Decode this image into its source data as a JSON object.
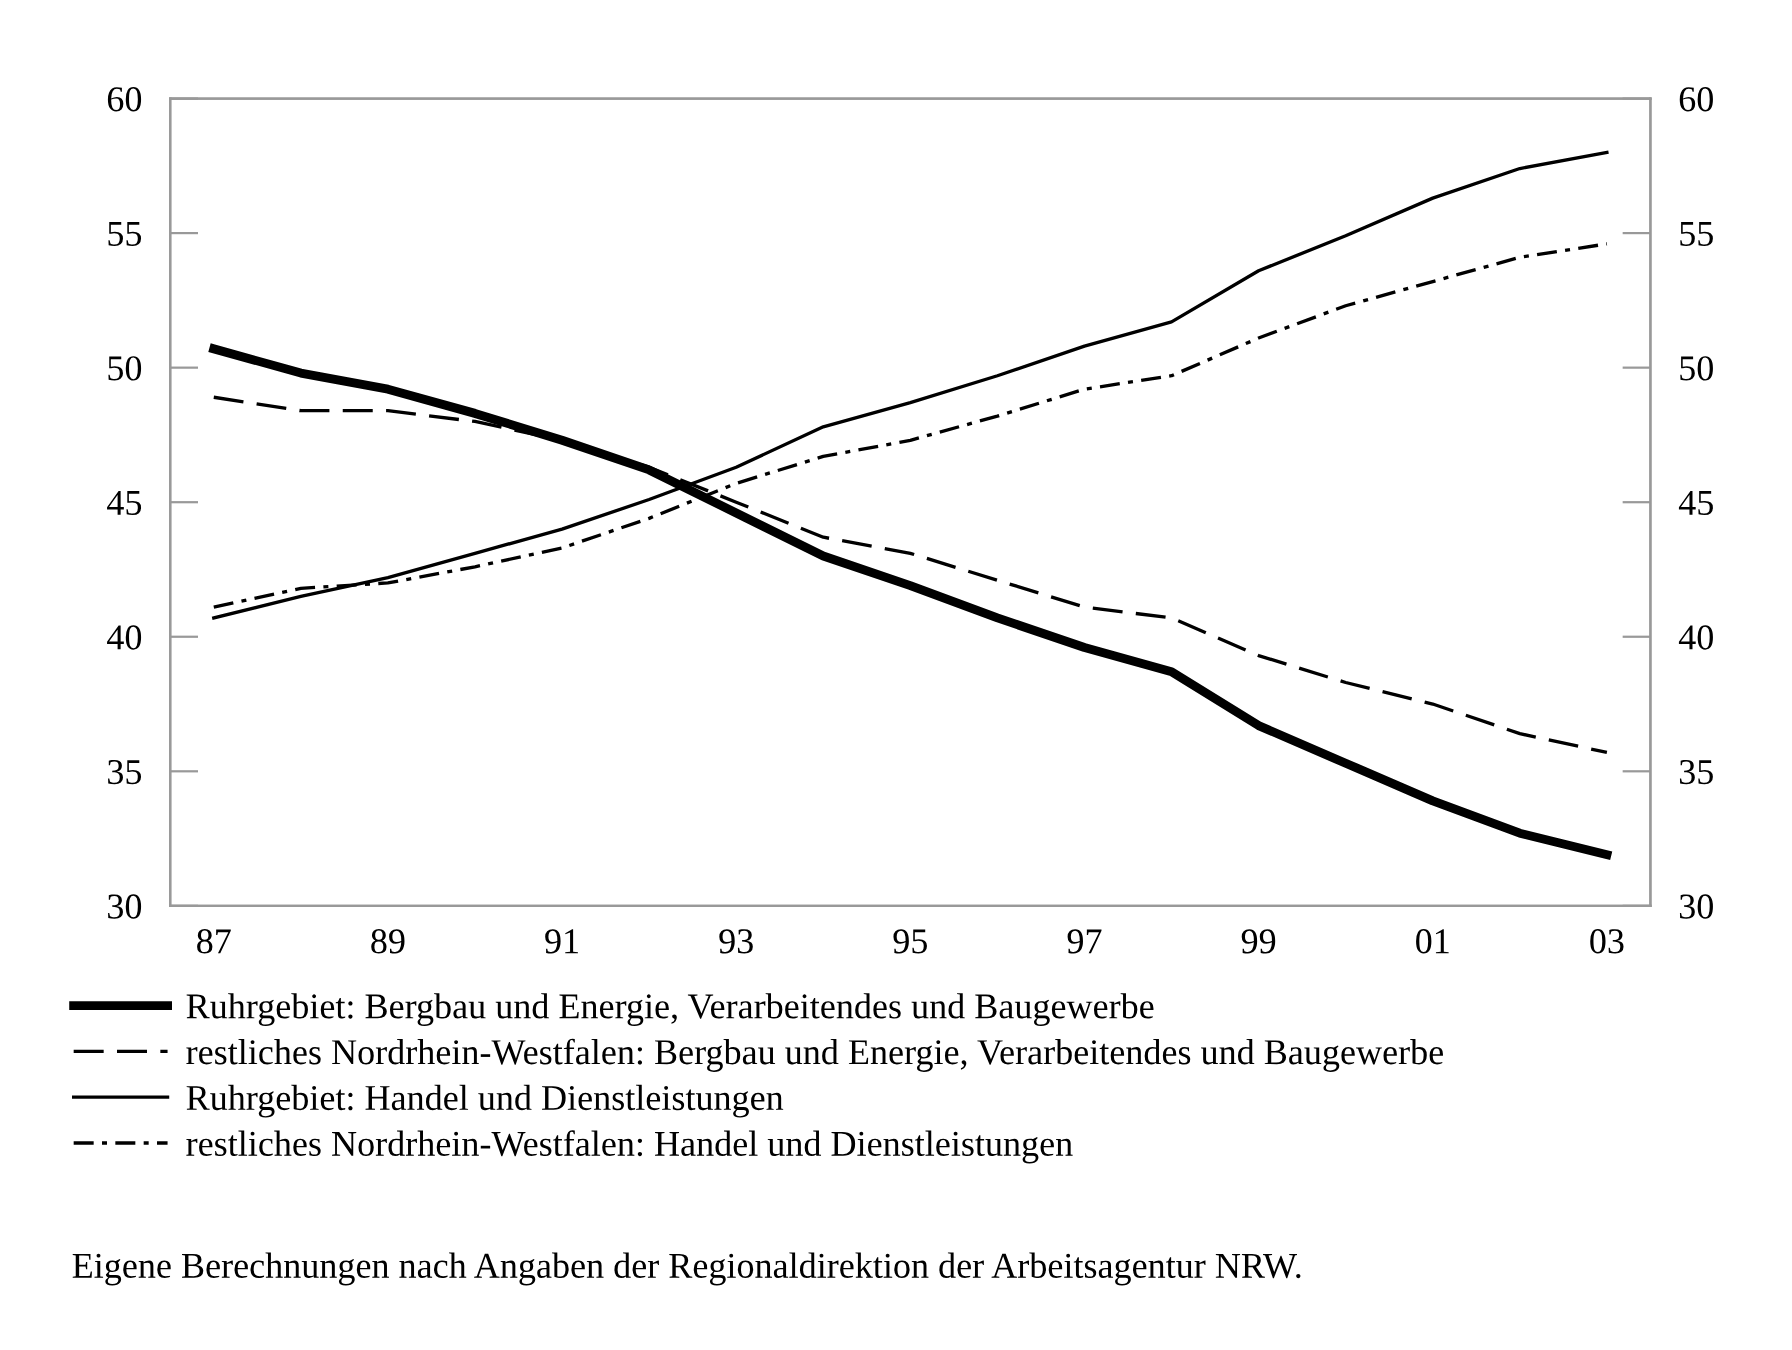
{
  "chart_data": {
    "type": "line",
    "categories": [
      "87",
      null,
      "89",
      null,
      "91",
      null,
      "93",
      null,
      "95",
      null,
      "97",
      null,
      "99",
      null,
      "01",
      null,
      "03"
    ],
    "series": [
      {
        "name": "Ruhrgebiet: Bergbau und Energie, Verarbeitendes und Baugewerbe",
        "color": "#000000",
        "line_style": "solid",
        "values": [
          50.7,
          49.8,
          49.2,
          48.3,
          47.3,
          46.2,
          44.6,
          43.0,
          41.9,
          40.7,
          39.6,
          38.7,
          36.7,
          35.3,
          33.9,
          32.7,
          31.9
        ]
      },
      {
        "name": "restliches Nordrhein-Westfalen: Bergbau und Energie, Verarbeitendes und Baugewerbe",
        "color": "#000000",
        "line_style": "dashed",
        "values": [
          48.9,
          48.4,
          48.4,
          48.0,
          47.3,
          46.3,
          45.0,
          43.7,
          43.1,
          42.1,
          41.1,
          40.7,
          39.3,
          38.3,
          37.5,
          36.4,
          35.7
        ]
      },
      {
        "name": "Ruhrgebiet: Handel und Dienstleistungen",
        "color": "#000000",
        "line_style": "solid",
        "values": [
          40.7,
          41.5,
          42.2,
          43.1,
          44.0,
          45.1,
          46.3,
          47.8,
          48.7,
          49.7,
          50.8,
          51.7,
          53.6,
          54.9,
          56.3,
          57.4,
          58.0
        ]
      },
      {
        "name": "restliches Nordrhein-Westfalen: Handel und Dienstleistungen",
        "color": "#000000",
        "line_style": "dashdot",
        "values": [
          41.1,
          41.8,
          42.0,
          42.6,
          43.3,
          44.4,
          45.7,
          46.7,
          47.3,
          48.2,
          49.2,
          49.7,
          51.1,
          52.3,
          53.2,
          54.1,
          54.6
        ]
      }
    ],
    "ylim": [
      30,
      60
    ],
    "yticks": [
      30,
      35,
      40,
      45,
      50,
      55,
      60
    ],
    "y2lim": [
      30,
      60
    ],
    "y2ticks": [
      30,
      35,
      40,
      45,
      50,
      55,
      60
    ],
    "grid": false,
    "legend": "bottom",
    "annotations": [
      "Eigene Berechnungen nach Angaben der Regionaldirektion der Arbeitsagentur NRW."
    ]
  }
}
